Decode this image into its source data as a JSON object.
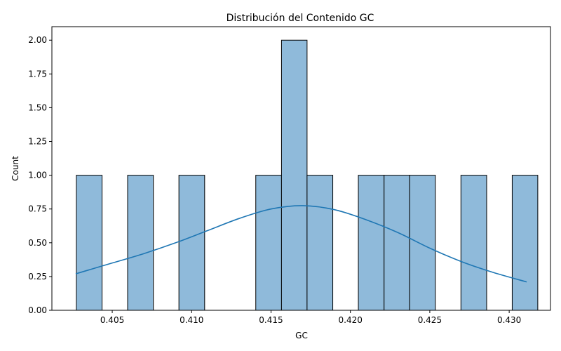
{
  "chart_data": {
    "type": "bar",
    "title": "Distribución del Contenido GC",
    "xlabel": "GC",
    "ylabel": "Count",
    "xlim": [
      0.4012,
      0.4326
    ],
    "ylim": [
      0,
      2.1
    ],
    "bin_edges": [
      0.40274,
      0.40436,
      0.40597,
      0.40759,
      0.4092,
      0.41082,
      0.41243,
      0.41404,
      0.41566,
      0.41727,
      0.41889,
      0.4205,
      0.42212,
      0.42373,
      0.42535,
      0.42696,
      0.42858,
      0.43019,
      0.4318
    ],
    "bins": [
      {
        "x0": 0.40274,
        "x1": 0.40436,
        "count": 1
      },
      {
        "x0": 0.40597,
        "x1": 0.40759,
        "count": 1
      },
      {
        "x0": 0.4092,
        "x1": 0.41082,
        "count": 1
      },
      {
        "x0": 0.41404,
        "x1": 0.41566,
        "count": 1
      },
      {
        "x0": 0.41566,
        "x1": 0.41727,
        "count": 2
      },
      {
        "x0": 0.41727,
        "x1": 0.41889,
        "count": 1
      },
      {
        "x0": 0.4205,
        "x1": 0.42212,
        "count": 1
      },
      {
        "x0": 0.42212,
        "x1": 0.42373,
        "count": 1
      },
      {
        "x0": 0.42373,
        "x1": 0.42535,
        "count": 1
      },
      {
        "x0": 0.42696,
        "x1": 0.42858,
        "count": 1
      },
      {
        "x0": 0.43019,
        "x1": 0.4318,
        "count": 1
      }
    ],
    "kde": {
      "x": [
        0.4027,
        0.405,
        0.407,
        0.409,
        0.411,
        0.413,
        0.415,
        0.417,
        0.419,
        0.421,
        0.423,
        0.425,
        0.427,
        0.429,
        0.4311
      ],
      "y": [
        0.27,
        0.35,
        0.42,
        0.5,
        0.59,
        0.68,
        0.75,
        0.775,
        0.745,
        0.67,
        0.575,
        0.46,
        0.36,
        0.28,
        0.21
      ]
    },
    "xticks": [
      0.405,
      0.41,
      0.415,
      0.42,
      0.425,
      0.43
    ],
    "xtick_labels": [
      "0.405",
      "0.410",
      "0.415",
      "0.420",
      "0.425",
      "0.430"
    ],
    "yticks": [
      0,
      0.25,
      0.5,
      0.75,
      1.0,
      1.25,
      1.5,
      1.75,
      2.0
    ],
    "ytick_labels": [
      "0.00",
      "0.25",
      "0.50",
      "0.75",
      "1.00",
      "1.25",
      "1.50",
      "1.75",
      "2.00"
    ],
    "grid": false,
    "colors": {
      "bar_fill": "#8fbada",
      "bar_edge": "#000000",
      "kde_line": "#1f77b4"
    }
  }
}
